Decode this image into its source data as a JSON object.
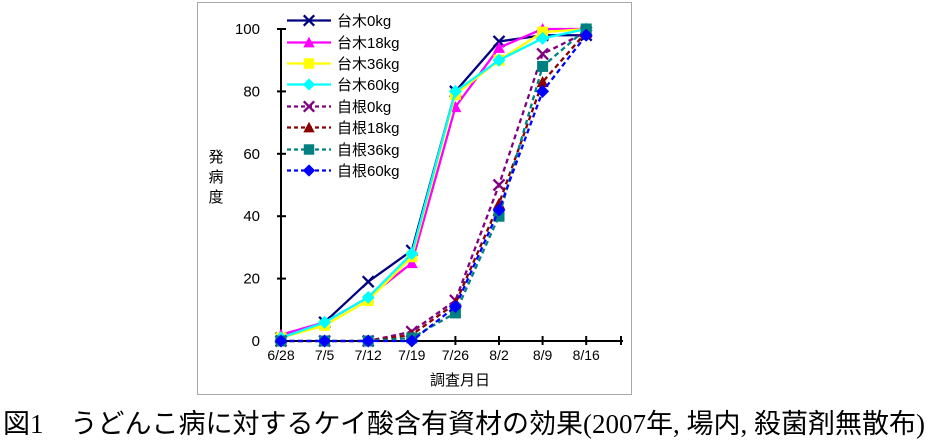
{
  "caption": "図1　うどんこ病に対するケイ酸含有資材の効果(2007年, 場内, 殺菌剤無散布)",
  "chart_data": {
    "type": "line",
    "title": "",
    "xlabel": "調査月日",
    "ylabel": "発病度",
    "ylim": [
      0,
      100
    ],
    "yticks": [
      0,
      20,
      40,
      60,
      80,
      100
    ],
    "grid": false,
    "legend_position": "top-left-inside",
    "axis_color": "#000000",
    "categories": [
      "6/28",
      "7/5",
      "7/12",
      "7/19",
      "7/26",
      "8/2",
      "8/9",
      "8/16"
    ],
    "series": [
      {
        "name": "台木0kg",
        "color": "#000080",
        "dashed": false,
        "marker": "x",
        "values": [
          1,
          6,
          19,
          29,
          80,
          96,
          98,
          98
        ]
      },
      {
        "name": "台木18kg",
        "color": "#FF00FF",
        "dashed": false,
        "marker": "triangle",
        "values": [
          2,
          6,
          14,
          25,
          75,
          94,
          100,
          100
        ]
      },
      {
        "name": "台木36kg",
        "color": "#FFFF00",
        "dashed": false,
        "marker": "square",
        "values": [
          1,
          5,
          13,
          27,
          79,
          90,
          99,
          100
        ]
      },
      {
        "name": "台木60kg",
        "color": "#00FFFF",
        "dashed": false,
        "marker": "diamond",
        "values": [
          1,
          6,
          14,
          28,
          80,
          90,
          97,
          100
        ]
      },
      {
        "name": "自根0kg",
        "color": "#800080",
        "dashed": true,
        "marker": "x",
        "values": [
          0,
          0,
          0,
          3,
          13,
          50,
          92,
          99
        ]
      },
      {
        "name": "自根18kg",
        "color": "#8B0000",
        "dashed": true,
        "marker": "triangle",
        "values": [
          0,
          0,
          0,
          2,
          12,
          44,
          83,
          99
        ]
      },
      {
        "name": "自根36kg",
        "color": "#008080",
        "dashed": true,
        "marker": "square",
        "values": [
          0,
          0,
          0,
          1,
          9,
          40,
          88,
          100
        ]
      },
      {
        "name": "自根60kg",
        "color": "#0000FF",
        "dashed": true,
        "marker": "diamond",
        "values": [
          0,
          0,
          0,
          0,
          11,
          42,
          80,
          98
        ]
      }
    ]
  }
}
